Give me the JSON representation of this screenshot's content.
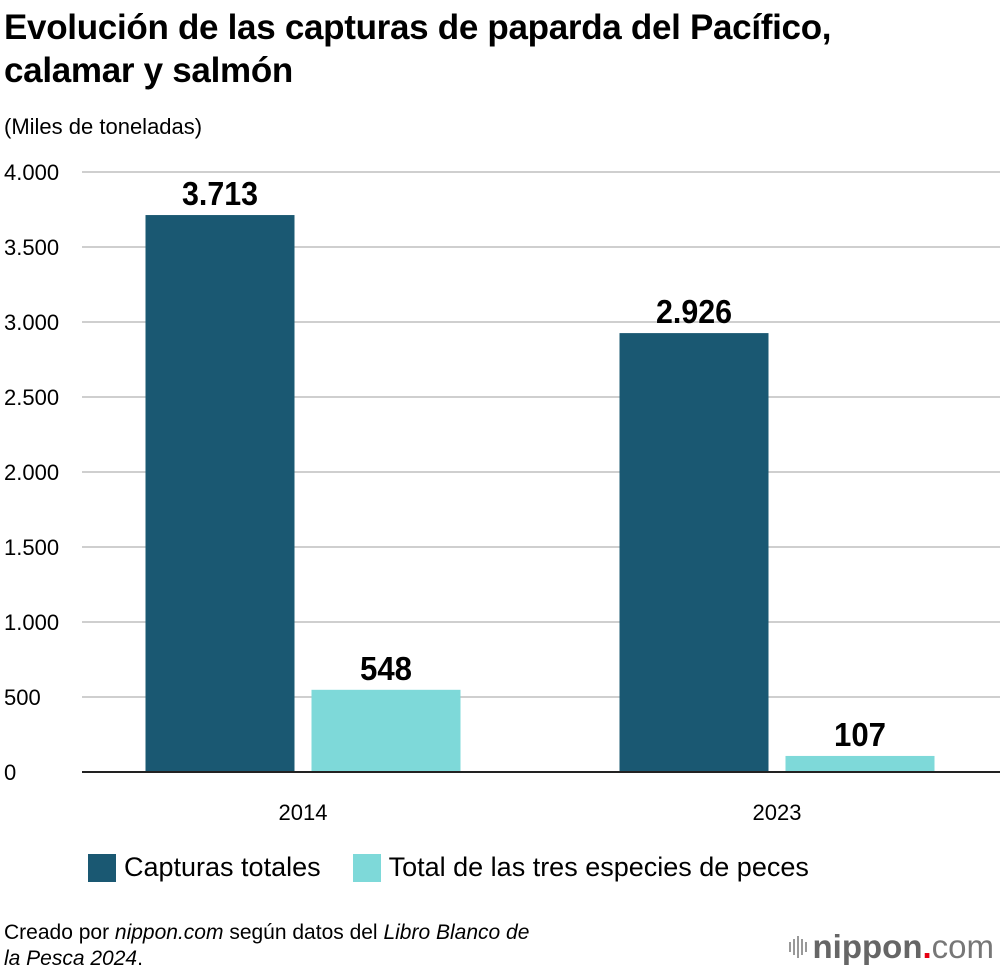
{
  "title_line1": "Evolución de las capturas de paparda del Pacífico,",
  "title_line2": "calamar y salmón",
  "footer": {
    "p1": "Creado por ",
    "p2": "nippon.com",
    "p3": " según datos del ",
    "p4": "Libro Blanco de",
    "p5": "la Pesca 2024",
    "p6": "."
  },
  "logo": {
    "name": "nippon",
    "dot": ".",
    "tld": "com"
  },
  "chart_data": {
    "type": "bar",
    "title": "Evolución de las capturas de paparda del Pacífico, calamar y salmón",
    "ylabel": "(Miles de toneladas)",
    "xlabel": "",
    "categories": [
      "2014",
      "2023"
    ],
    "series": [
      {
        "name": "Capturas totales",
        "color": "#1a5872",
        "values": [
          3713,
          2926
        ],
        "labels": [
          "3.713",
          "2.926"
        ]
      },
      {
        "name": "Total de las tres especies de peces",
        "color": "#7ed9d9",
        "values": [
          548,
          107
        ],
        "labels": [
          "548",
          "107"
        ]
      }
    ],
    "ylim": [
      0,
      4000
    ],
    "yticks": [
      0,
      500,
      1000,
      1500,
      2000,
      2500,
      3000,
      3500,
      4000
    ],
    "ytick_labels": [
      "0",
      "500",
      "1.000",
      "1.500",
      "2.000",
      "2.500",
      "3.000",
      "3.500",
      "4.000"
    ],
    "grid": true,
    "legend_position": "bottom"
  }
}
